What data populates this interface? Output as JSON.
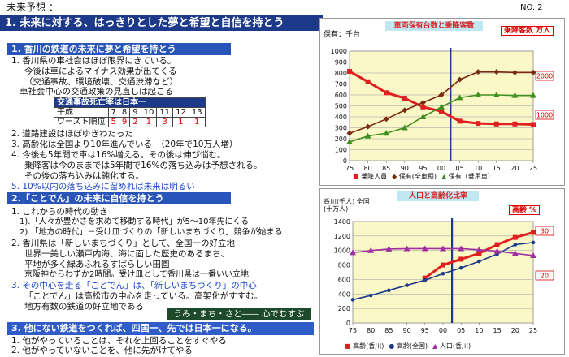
{
  "header": {
    "title": "未来予想 ：",
    "page": "NO. 2"
  },
  "main_banner": "1. 未来に対する、はっきりとした夢と希望と自信を持とう",
  "section1": {
    "heading": "1. 香川の鉄道の未来に夢と希望を持とう",
    "l1": "1. 香川県の車社会はほぼ限界にきている。",
    "l1a": "今後は車によるマイナス効果が出てくる",
    "l1b": "（交通事故、環境破壊、交通渋滞など）",
    "l1c": "車社会中心の交通政策の見直しは起こる",
    "table": {
      "title": "交通事故死亡率は日本一",
      "row1_label": "平成",
      "row1": [
        "7",
        "8",
        "9",
        "10",
        "11",
        "12",
        "13"
      ],
      "row2_label": "ワースト順位",
      "row2": [
        "5",
        "9",
        "2",
        "1",
        "3",
        "1",
        "1"
      ]
    },
    "l2": "2. 道路建設はほぼゆきわたった",
    "l3": "3. 高齢化は全国より10年進んでいる　（20年で10万人増）",
    "l4": "4. 今後も5年間で車は16%増える。その後は伸び悩む。",
    "l4a": "乗降客は今のままでは5年間で16%の落ち込みは予想される。",
    "l4b": "その後の落ち込みは鈍化する。",
    "l5": "5. 10%以内の落ち込みに留めれば未来は明るい"
  },
  "section2": {
    "heading": "2.「ことでん」の未来に自信を持とう",
    "l1": "1. これからの時代の動き",
    "l1a": "1).「人々が豊かさを求めて移動する時代」が5～10年先にくる",
    "l1b": "2).「地方の時代」－受け皿づくりの「新しいまちづくり」競争が始まる",
    "l2": "2. 香川県は「新しいまちづくり」として、全国一の好立地",
    "l2a": "世界一美しい瀬戸内海、海に面した歴史のあるまち、",
    "l2b": "平地が多く緑あふれるすばらしい田園",
    "l2c": "京阪神からわずか2時間。受け皿として香川県は一番いい立地",
    "l3": "3. その中心を走る「ことでん」は、「新しいまちづくり」の中心",
    "l3a": "「ことでん」は高松市の中心を走っている。高架化がすすむ。",
    "l3b": "地方有数の鉄道の好立地である",
    "slogan": "うみ・まち・さと―― 心でむすぶ"
  },
  "section3": {
    "heading": "3. 他にない鉄道をつくれば、四国一、先では日本一になる。",
    "l1": "1. 他がやっていることは、それを上回ることをすぐやる",
    "l2": "2. 他がやっていないことを、他に先がけてやる"
  },
  "chart_data": [
    {
      "type": "line",
      "title": "車両保有台数と乗降客数",
      "ylabel": "保有：千台",
      "right_label": "乗降客数 万人",
      "x": [
        "75",
        "80",
        "85",
        "90",
        "95",
        "00",
        "05",
        "10",
        "15",
        "20",
        "25"
      ],
      "ylim": [
        0,
        1000
      ],
      "yticks": [
        "0",
        "100",
        "200",
        "300",
        "400",
        "500",
        "600",
        "700",
        "800",
        "900",
        "1000"
      ],
      "right_ticks": [
        "2000",
        "1000"
      ],
      "series": [
        {
          "name": "乗降人員",
          "color": "#e02020",
          "values": [
            815,
            720,
            620,
            570,
            490,
            450,
            360,
            340,
            335,
            335,
            330
          ]
        },
        {
          "name": "保有(全車種)",
          "color": "#7a2a10",
          "values": [
            250,
            310,
            380,
            460,
            530,
            600,
            740,
            810,
            810,
            805,
            805
          ]
        },
        {
          "name": "保有（乗用車）",
          "color": "#3e8f1f",
          "values": [
            170,
            225,
            250,
            300,
            400,
            490,
            575,
            600,
            600,
            595,
            595
          ]
        }
      ]
    },
    {
      "type": "line",
      "title": "人口と高齢化比率",
      "ylabel": "香川(千人) 全国(十万人)",
      "right_label": "高齢 %",
      "x": [
        "75",
        "80",
        "85",
        "90",
        "95",
        "00",
        "05",
        "10",
        "15",
        "20",
        "25"
      ],
      "ylim": [
        0,
        1400
      ],
      "yticks": [
        "0",
        "200",
        "400",
        "600",
        "800",
        "1000",
        "1200",
        "1400"
      ],
      "right_ticks": [
        "30",
        "20"
      ],
      "series": [
        {
          "name": "高齢(香川)",
          "color": "#e02020",
          "values": [
            null,
            null,
            null,
            null,
            620,
            800,
            880,
            960,
            1080,
            1180,
            1250
          ]
        },
        {
          "name": "高齢(全国)",
          "color": "#1d3a8a",
          "values": [
            320,
            380,
            450,
            520,
            590,
            680,
            760,
            850,
            950,
            1080,
            1110
          ]
        },
        {
          "name": "人口(香川)",
          "color": "#a030a0",
          "values": [
            970,
            1000,
            1020,
            1025,
            1025,
            1025,
            1025,
            1010,
            990,
            960,
            930
          ]
        }
      ]
    }
  ]
}
